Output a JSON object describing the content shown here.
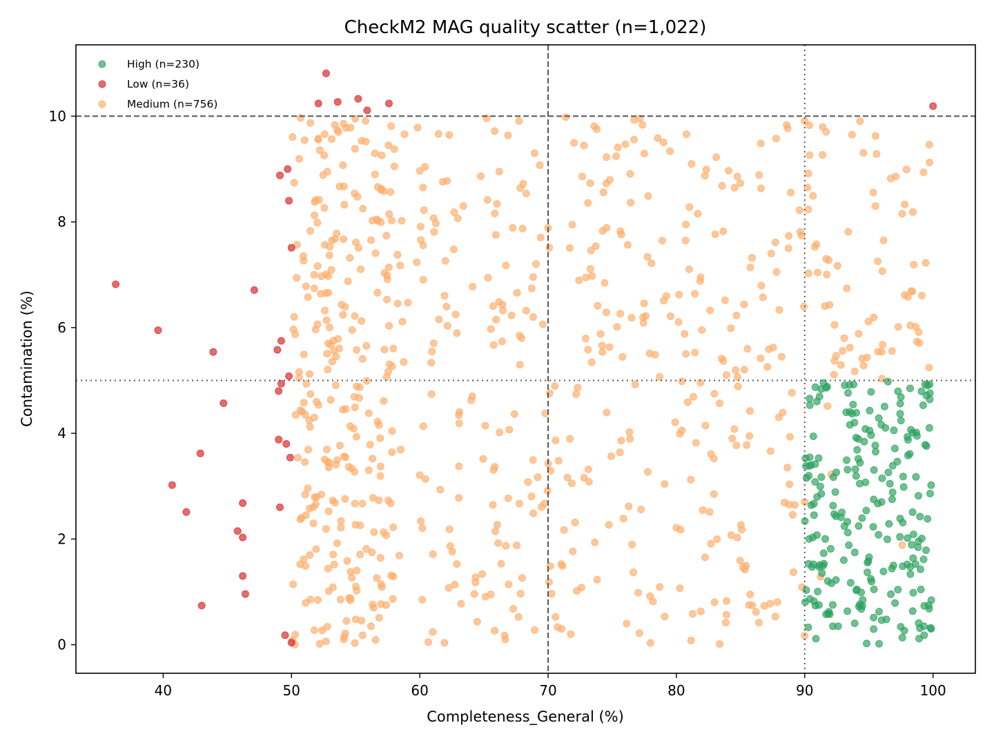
{
  "chart_data": {
    "type": "scatter",
    "title": "CheckM2 MAG quality scatter (n=1,022)",
    "xlabel": "Completeness_General (%)",
    "ylabel": "Contamination (%)",
    "xlim": [
      33.2,
      103.3
    ],
    "ylim": [
      -0.54,
      11.35
    ],
    "x_ticks": [
      40,
      50,
      60,
      70,
      80,
      90,
      100
    ],
    "y_ticks": [
      0,
      2,
      4,
      6,
      8,
      10
    ],
    "grid": false,
    "legend_position": "upper left",
    "reference_lines": [
      {
        "orientation": "vertical",
        "value": 70,
        "style": "dashed",
        "color": "#555555"
      },
      {
        "orientation": "horizontal",
        "value": 10,
        "style": "dashed",
        "color": "#555555"
      },
      {
        "orientation": "vertical",
        "value": 90,
        "style": "dotted",
        "color": "#555555"
      },
      {
        "orientation": "horizontal",
        "value": 5,
        "style": "dotted",
        "color": "#555555"
      }
    ],
    "series": [
      {
        "name": "High",
        "legend_label": "High (n=230)",
        "count": 230,
        "color": "#2ca25f",
        "x_range": [
          90,
          100
        ],
        "y_range": [
          0,
          5
        ]
      },
      {
        "name": "Low",
        "legend_label": "Low (n=36)",
        "count": 36,
        "color": "#d62728",
        "points": [
          [
            36.3,
            6.82
          ],
          [
            39.6,
            5.95
          ],
          [
            40.7,
            3.02
          ],
          [
            41.8,
            2.51
          ],
          [
            42.9,
            3.62
          ],
          [
            43.0,
            0.74
          ],
          [
            43.9,
            5.54
          ],
          [
            44.7,
            4.57
          ],
          [
            45.8,
            2.15
          ],
          [
            46.2,
            2.03
          ],
          [
            46.2,
            2.68
          ],
          [
            46.2,
            1.3
          ],
          [
            46.4,
            0.96
          ],
          [
            47.1,
            6.71
          ],
          [
            48.9,
            5.58
          ],
          [
            49.0,
            4.8
          ],
          [
            49.0,
            3.88
          ],
          [
            49.1,
            2.6
          ],
          [
            49.1,
            8.88
          ],
          [
            49.2,
            4.94
          ],
          [
            49.2,
            5.75
          ],
          [
            49.6,
            3.8
          ],
          [
            49.5,
            0.18
          ],
          [
            49.7,
            9.0
          ],
          [
            49.8,
            8.4
          ],
          [
            49.8,
            5.08
          ],
          [
            49.9,
            3.54
          ],
          [
            50.0,
            7.51
          ],
          [
            50.0,
            0.04
          ],
          [
            52.1,
            10.24
          ],
          [
            52.7,
            10.81
          ],
          [
            53.6,
            10.27
          ],
          [
            55.2,
            10.33
          ],
          [
            55.9,
            10.11
          ],
          [
            57.6,
            10.24
          ],
          [
            100.0,
            10.19
          ]
        ]
      },
      {
        "name": "Medium",
        "legend_label": "Medium (n=756)",
        "count": 756,
        "color": "#fdae6b",
        "x_range": [
          50,
          100
        ],
        "y_range": [
          0,
          10
        ]
      }
    ]
  },
  "legend": {
    "items": [
      {
        "label": "High (n=230)",
        "color": "#2ca25f"
      },
      {
        "label": "Low (n=36)",
        "color": "#d62728"
      },
      {
        "label": "Medium (n=756)",
        "color": "#fdae6b"
      }
    ]
  }
}
